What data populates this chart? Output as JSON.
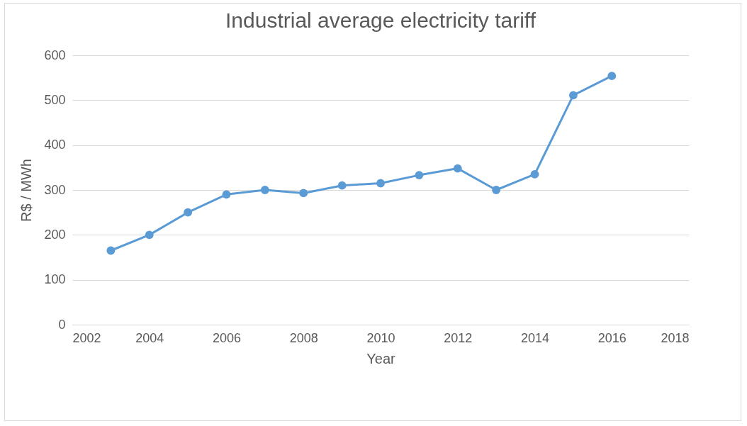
{
  "chart_data": {
    "type": "line",
    "title": "Industrial average electricity tariff",
    "xlabel": "Year",
    "ylabel": "R$ / MWh",
    "x": [
      2003,
      2004,
      2005,
      2006,
      2007,
      2008,
      2009,
      2010,
      2011,
      2012,
      2013,
      2014,
      2015,
      2016
    ],
    "series": [
      {
        "color": "#5b9bd5",
        "values": [
          165,
          200,
          250,
          290,
          300,
          293,
          310,
          315,
          333,
          348,
          300,
          335,
          511,
          554
        ]
      }
    ],
    "xlim": [
      2002,
      2018
    ],
    "xticks": [
      2002,
      2004,
      2006,
      2008,
      2010,
      2012,
      2014,
      2016,
      2018
    ],
    "ylim": [
      0,
      600
    ],
    "yticks": [
      0,
      100,
      200,
      300,
      400,
      500,
      600
    ],
    "grid": "y",
    "marker": "circle",
    "line_style": "solid"
  }
}
